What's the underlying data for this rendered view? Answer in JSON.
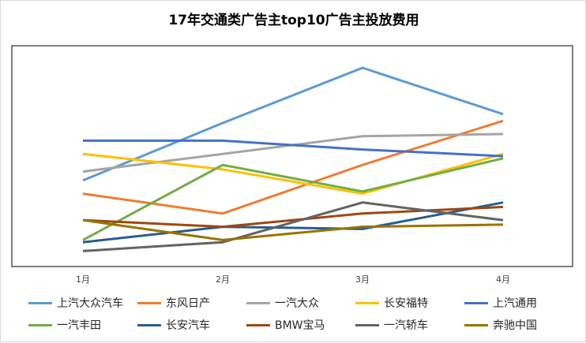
{
  "chart_data": {
    "type": "line",
    "title": "17年交通类广告主top10广告主投放费用",
    "xlabel": "",
    "ylabel": "",
    "categories": [
      "1月",
      "2月",
      "3月",
      "4月"
    ],
    "grid": false,
    "legend_position": "bottom",
    "ylim": [
      0,
      100
    ],
    "series": [
      {
        "name": "上汽大众汽车",
        "color": "#5b9bd5",
        "values": [
          39,
          65,
          90,
          69
        ]
      },
      {
        "name": "东风日产",
        "color": "#ed7d31",
        "values": [
          33,
          24,
          46,
          66
        ]
      },
      {
        "name": "一汽大众",
        "color": "#a5a5a5",
        "values": [
          43,
          51,
          59,
          60
        ]
      },
      {
        "name": "长安福特",
        "color": "#ffc000",
        "values": [
          51,
          44,
          33,
          51
        ]
      },
      {
        "name": "上汽通用",
        "color": "#4472c4",
        "values": [
          57,
          57,
          53,
          50
        ]
      },
      {
        "name": "一汽丰田",
        "color": "#70ad47",
        "values": [
          12,
          46,
          34,
          49
        ]
      },
      {
        "name": "长安汽车",
        "color": "#255e91",
        "values": [
          11,
          18,
          17,
          29
        ]
      },
      {
        "name": "BMW宝马",
        "color": "#9e480e",
        "values": [
          21,
          18,
          24,
          27
        ]
      },
      {
        "name": "一汽轿车",
        "color": "#636363",
        "values": [
          7,
          11,
          29,
          21
        ]
      },
      {
        "name": "奔驰中国",
        "color": "#997300",
        "values": [
          21,
          12,
          18,
          19
        ]
      }
    ]
  }
}
